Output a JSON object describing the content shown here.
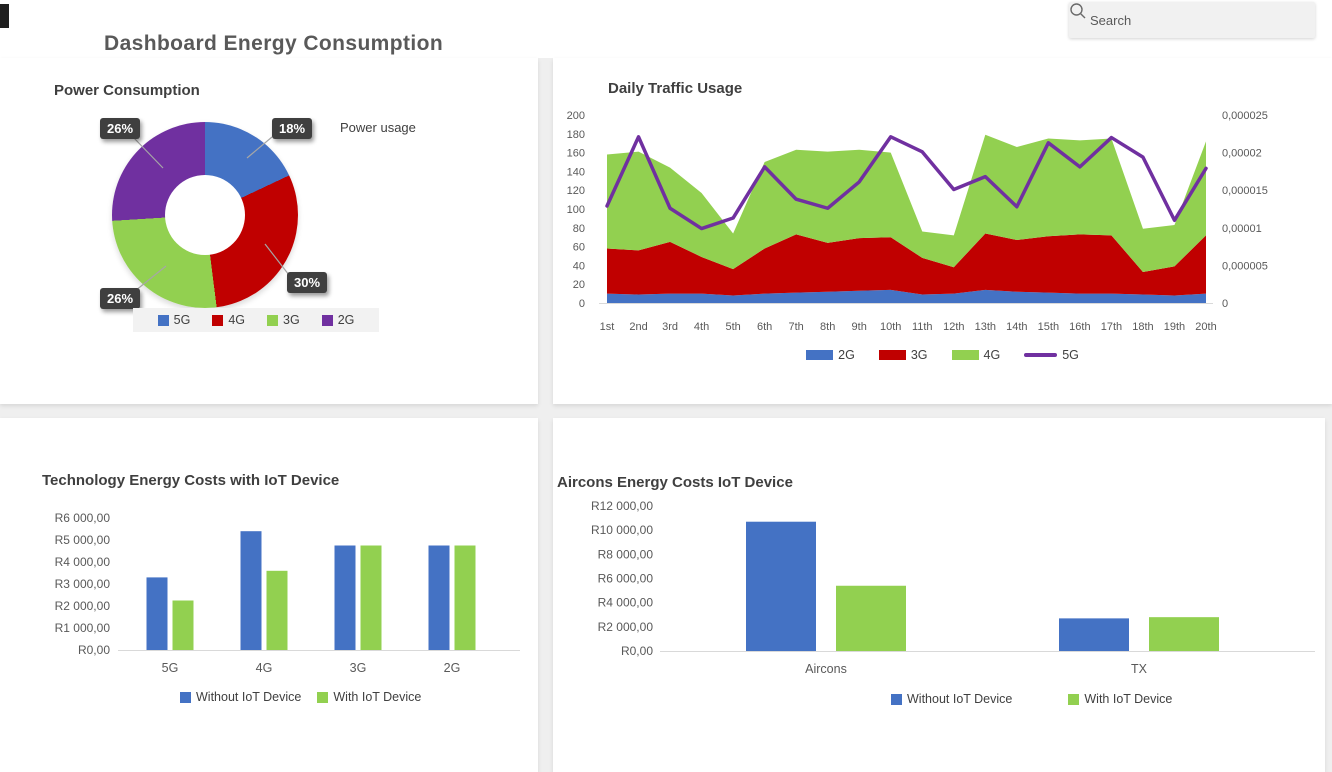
{
  "header": {
    "title": "Dashboard Energy Consumption",
    "search_placeholder": "Search"
  },
  "colors": {
    "blue": "#4472C4",
    "red": "#C00000",
    "green": "#92D050",
    "purple": "#7030A0",
    "axis_text": "#595959",
    "gutter": "#efefef",
    "label_box": "#3f3f3f"
  },
  "chart_data": [
    {
      "id": "power_consumption",
      "type": "pie",
      "donut": true,
      "title": "Power Consumption",
      "annotation": "Power usage",
      "labels": [
        "5G",
        "4G",
        "3G",
        "2G"
      ],
      "values": [
        18,
        30,
        26,
        26
      ],
      "data_labels": [
        "18%",
        "30%",
        "26%",
        "26%"
      ],
      "colors": [
        "#4472C4",
        "#C00000",
        "#92D050",
        "#7030A0"
      ],
      "legend_position": "bottom"
    },
    {
      "id": "daily_traffic",
      "type": "area",
      "stacked": true,
      "title": "Daily Traffic Usage",
      "categories": [
        "1st",
        "2nd",
        "3rd",
        "4th",
        "5th",
        "6th",
        "7th",
        "8th",
        "9th",
        "10th",
        "11th",
        "12th",
        "13th",
        "14th",
        "15th",
        "16th",
        "17th",
        "18th",
        "19th",
        "20th"
      ],
      "series": [
        {
          "name": "2G",
          "type": "area",
          "axis": "left",
          "color": "#4472C4",
          "values": [
            10,
            9,
            10,
            10,
            8,
            10,
            11,
            12,
            13,
            14,
            9,
            10,
            14,
            12,
            11,
            10,
            10,
            9,
            8,
            10
          ]
        },
        {
          "name": "3G",
          "type": "area",
          "axis": "left",
          "color": "#C00000",
          "values": [
            48,
            47,
            55,
            39,
            28,
            48,
            62,
            52,
            56,
            56,
            39,
            28,
            60,
            55,
            60,
            63,
            62,
            24,
            31,
            62
          ]
        },
        {
          "name": "4G",
          "type": "area",
          "axis": "left",
          "color": "#92D050",
          "values": [
            100,
            105,
            79,
            68,
            38,
            92,
            90,
            97,
            94,
            90,
            28,
            34,
            105,
            99,
            104,
            100,
            103,
            46,
            44,
            100
          ]
        },
        {
          "name": "5G",
          "type": "line",
          "axis": "right",
          "color": "#7030A0",
          "values": [
            1.29e-05,
            2.21e-05,
            1.26e-05,
            9.9e-06,
            1.13e-05,
            1.81e-05,
            1.38e-05,
            1.26e-05,
            1.61e-05,
            2.21e-05,
            2.01e-05,
            1.51e-05,
            1.68e-05,
            1.28e-05,
            2.13e-05,
            1.81e-05,
            2.2e-05,
            1.94e-05,
            1.1e-05,
            1.79e-05
          ]
        }
      ],
      "left_axis": {
        "min": 0,
        "max": 200,
        "ticks": [
          "0",
          "20",
          "40",
          "60",
          "80",
          "100",
          "120",
          "140",
          "160",
          "180",
          "200"
        ]
      },
      "right_axis": {
        "min": 0,
        "max": 2.5e-05,
        "ticks": [
          "0",
          "0,000005",
          "0,00001",
          "0,000015",
          "0,00002",
          "0,000025"
        ]
      },
      "legend_position": "bottom",
      "grid": false
    },
    {
      "id": "tech_costs",
      "type": "bar",
      "title": "Technology Energy Costs with IoT Device",
      "categories": [
        "5G",
        "4G",
        "3G",
        "2G"
      ],
      "series": [
        {
          "name": "Without IoT Device",
          "color": "#4472C4",
          "values": [
            3300,
            5400,
            4750,
            4750
          ]
        },
        {
          "name": "With IoT Device",
          "color": "#92D050",
          "values": [
            2250,
            3600,
            4750,
            4750
          ]
        }
      ],
      "ylim": [
        0,
        6000
      ],
      "y_ticks": [
        "R0,00",
        "R1 000,00",
        "R2 000,00",
        "R3 000,00",
        "R4 000,00",
        "R5 000,00",
        "R6 000,00"
      ],
      "legend_position": "bottom",
      "grid": false
    },
    {
      "id": "aircons_costs",
      "type": "bar",
      "title": "Aircons Energy Costs IoT Device",
      "categories": [
        "Aircons",
        "TX"
      ],
      "series": [
        {
          "name": "Without IoT Device",
          "color": "#4472C4",
          "values": [
            10700,
            2700
          ]
        },
        {
          "name": "With IoT Device",
          "color": "#92D050",
          "values": [
            5400,
            2800
          ]
        }
      ],
      "ylim": [
        0,
        12000
      ],
      "y_ticks": [
        "R0,00",
        "R2 000,00",
        "R4 000,00",
        "R6 000,00",
        "R8 000,00",
        "R10 000,00",
        "R12 000,00"
      ],
      "legend_position": "bottom",
      "grid": false
    }
  ]
}
